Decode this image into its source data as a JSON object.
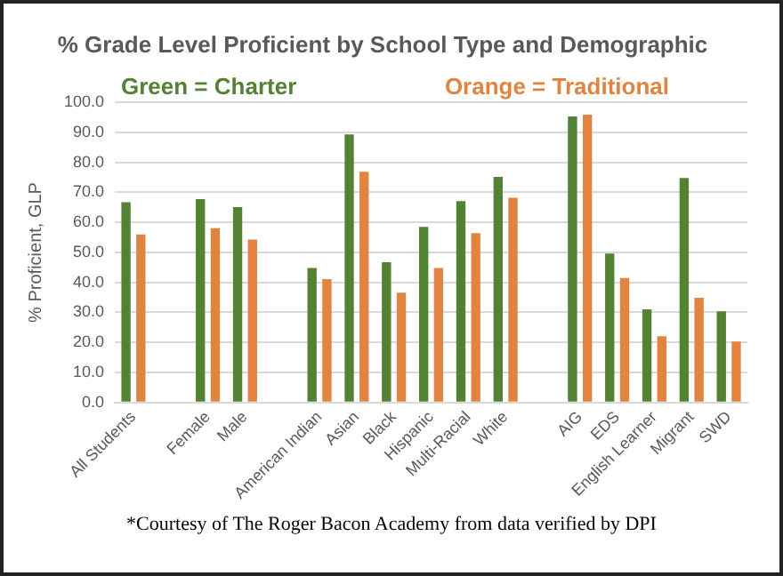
{
  "chart_data": {
    "type": "bar",
    "title": "% Grade Level Proficient by School Type and Demographic",
    "ylabel": "% Proficient, GLP",
    "categories": [
      "All Students",
      null,
      "Female",
      "Male",
      null,
      "American Indian",
      "Asian",
      "Black",
      "Hispanic",
      "Multi-Racial",
      "White",
      null,
      "AIG",
      "EDS",
      "English Learner",
      "Migrant",
      "SWD"
    ],
    "series": [
      {
        "color": "#548235",
        "values": [
          66.7,
          null,
          67.8,
          65.1,
          null,
          44.8,
          89.3,
          46.7,
          58.5,
          67.1,
          75.2,
          null,
          95.3,
          49.6,
          31.0,
          74.8,
          30.4
        ]
      },
      {
        "color": "#e0843f",
        "values": [
          56.0,
          null,
          58.1,
          54.3,
          null,
          41.1,
          76.9,
          36.6,
          44.8,
          56.4,
          68.2,
          null,
          95.9,
          41.5,
          22.1,
          34.9,
          20.3
        ]
      }
    ],
    "ylim": [
      0,
      100
    ],
    "yticks": [
      {
        "value": 0,
        "label": "0.0"
      },
      {
        "value": 10,
        "label": "10.0"
      },
      {
        "value": 20,
        "label": "20.0"
      },
      {
        "value": 30,
        "label": "30.0"
      },
      {
        "value": 40,
        "label": "40.0"
      },
      {
        "value": 50,
        "label": "50.0"
      },
      {
        "value": 60,
        "label": "60.0"
      },
      {
        "value": 70,
        "label": "70.0"
      },
      {
        "value": 80,
        "label": "80.0"
      },
      {
        "value": 90,
        "label": "90.0"
      },
      {
        "value": 100,
        "label": "100.0"
      }
    ],
    "grid": "y",
    "legend": false,
    "annotations": [
      "Green = Charter",
      "Orange = Traditional",
      "*Courtesy of The Roger Bacon Academy from data verified by DPI"
    ]
  }
}
